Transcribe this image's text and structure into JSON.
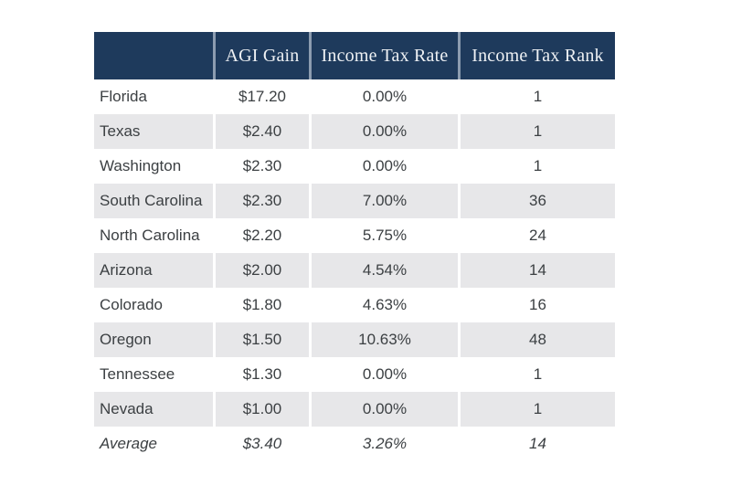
{
  "chart_data": {
    "type": "table",
    "columns": [
      {
        "key": "state",
        "label": ""
      },
      {
        "key": "agi_gain",
        "label": "AGI Gain"
      },
      {
        "key": "rate",
        "label": "Income Tax Rate"
      },
      {
        "key": "rank",
        "label": "Income Tax Rank"
      }
    ],
    "rows": [
      {
        "state": "Florida",
        "agi_gain": "$17.20",
        "rate": "0.00%",
        "rank": "1"
      },
      {
        "state": "Texas",
        "agi_gain": "$2.40",
        "rate": "0.00%",
        "rank": "1"
      },
      {
        "state": "Washington",
        "agi_gain": "$2.30",
        "rate": "0.00%",
        "rank": "1"
      },
      {
        "state": "South Carolina",
        "agi_gain": "$2.30",
        "rate": "7.00%",
        "rank": "36"
      },
      {
        "state": "North Carolina",
        "agi_gain": "$2.20",
        "rate": "5.75%",
        "rank": "24"
      },
      {
        "state": "Arizona",
        "agi_gain": "$2.00",
        "rate": "4.54%",
        "rank": "14"
      },
      {
        "state": "Colorado",
        "agi_gain": "$1.80",
        "rate": "4.63%",
        "rank": "16"
      },
      {
        "state": "Oregon",
        "agi_gain": "$1.50",
        "rate": "10.63%",
        "rank": "48"
      },
      {
        "state": "Tennessee",
        "agi_gain": "$1.30",
        "rate": "0.00%",
        "rank": "1"
      },
      {
        "state": "Nevada",
        "agi_gain": "$1.00",
        "rate": "0.00%",
        "rank": "1"
      },
      {
        "state": "Average",
        "agi_gain": "$3.40",
        "rate": "3.26%",
        "rank": "14"
      }
    ],
    "layout_hints": {
      "striped_rows": true,
      "average_row_index": 10,
      "average_row_style": "italic",
      "legend": "none",
      "grid": "off"
    },
    "colors": {
      "header_bg": "#1e3a5c",
      "header_text": "#eef1f4",
      "header_divider": "#8c9cb0",
      "alt_row_bg": "#e7e7e9",
      "body_text": "#3c4043",
      "page_bg": "#ffffff"
    }
  }
}
